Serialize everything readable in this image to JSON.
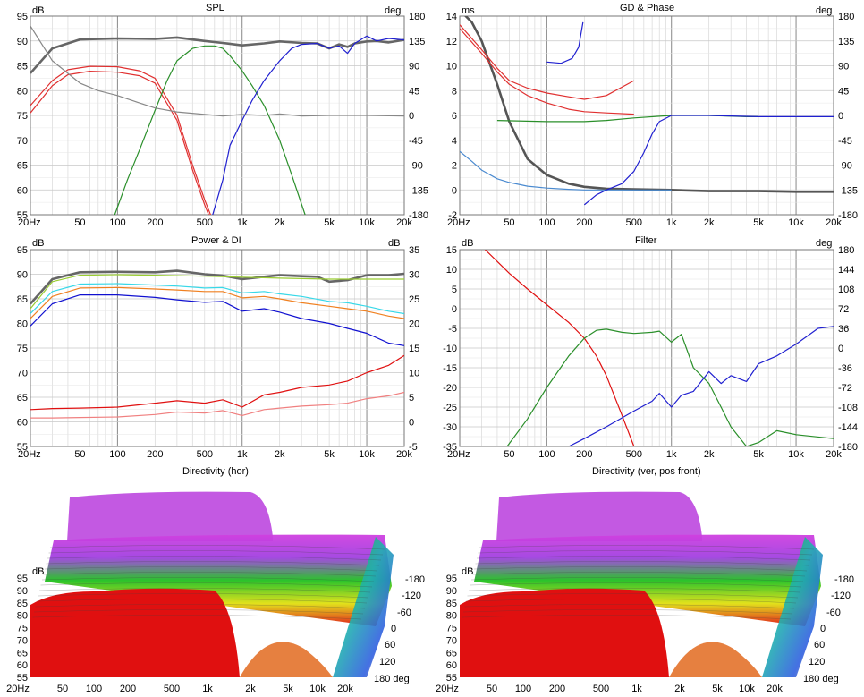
{
  "panels": {
    "spl": {
      "title": "SPL",
      "left_unit": "dB",
      "right_unit": "deg"
    },
    "gd": {
      "title": "GD & Phase",
      "left_unit": "ms",
      "right_unit": "deg"
    },
    "power": {
      "title": "Power & DI",
      "left_unit": "dB",
      "right_unit": "dB"
    },
    "filter": {
      "title": "Filter",
      "left_unit": "dB",
      "right_unit": "deg"
    },
    "dir_hor": {
      "title": "Directivity (hor)",
      "left_unit": "dB"
    },
    "dir_ver": {
      "title": "Directivity (ver, pos front)",
      "left_unit": "dB"
    }
  },
  "chart_data": [
    {
      "id": "spl",
      "type": "line",
      "title": "SPL",
      "x_scale": "log",
      "xlim": [
        20,
        20000
      ],
      "x_ticks": [
        "20Hz",
        "50",
        "100",
        "200",
        "500",
        "1k",
        "2k",
        "5k",
        "10k",
        "20k"
      ],
      "ylim": [
        55,
        95
      ],
      "y_ticks": [
        "95",
        "90",
        "85",
        "80",
        "75",
        "70",
        "65",
        "60",
        "55"
      ],
      "y2lim": [
        -180,
        180
      ],
      "y2_ticks": [
        "180",
        "135",
        "90",
        "45",
        "0",
        "-45",
        "-90",
        "-135",
        "-180"
      ],
      "series": [
        {
          "color": "#666666",
          "axis": "left",
          "x": [
            20,
            30,
            50,
            100,
            200,
            300,
            500,
            700,
            1000,
            1500,
            2000,
            3000,
            4000,
            5000,
            6000,
            7000,
            8000,
            10000,
            12000,
            15000,
            20000
          ],
          "values": [
            83.5,
            88.5,
            90.3,
            90.5,
            90.4,
            90.7,
            90.0,
            89.6,
            89.1,
            89.5,
            89.9,
            89.6,
            89.5,
            88.5,
            89.3,
            88.8,
            89.5,
            89.9,
            90.0,
            89.7,
            90.2
          ]
        },
        {
          "color": "#e03030",
          "axis": "left",
          "x": [
            20,
            30,
            40,
            60,
            100,
            150,
            200,
            300,
            400,
            500,
            600
          ],
          "values": [
            77,
            82,
            84.2,
            84.9,
            84.8,
            84.0,
            82.5,
            75,
            65,
            58,
            53
          ]
        },
        {
          "color": "#e03030",
          "axis": "left",
          "x": [
            20,
            30,
            40,
            60,
            100,
            150,
            200,
            300,
            400,
            500,
            600
          ],
          "values": [
            75.5,
            81,
            83.2,
            83.9,
            83.7,
            83.0,
            81.5,
            74,
            64,
            57,
            52
          ]
        },
        {
          "color": "#2a8f2a",
          "axis": "left",
          "x": [
            95,
            120,
            150,
            200,
            250,
            300,
            400,
            500,
            600,
            700,
            800,
            1000,
            1200,
            1500,
            2000,
            2500,
            3200
          ],
          "values": [
            55,
            62,
            68,
            76,
            82,
            86,
            88.5,
            89.0,
            89.0,
            88.5,
            87,
            84,
            81,
            77,
            70,
            63,
            55
          ]
        },
        {
          "color": "#2020d0",
          "axis": "left",
          "x": [
            580,
            700,
            800,
            1000,
            1200,
            1500,
            2000,
            2500,
            3000,
            4000,
            5000,
            6000,
            7000,
            8000,
            10000,
            12000,
            15000,
            20000
          ],
          "values": [
            55,
            62,
            69,
            74,
            78,
            82,
            86,
            88.5,
            89.3,
            89.5,
            88.5,
            89.0,
            87.5,
            89.5,
            91.0,
            90.0,
            90.5,
            90.2
          ]
        },
        {
          "color": "#888888",
          "axis": "left",
          "x": [
            20,
            30,
            50,
            70,
            100,
            150,
            200,
            300,
            500,
            700,
            1000,
            1500,
            2000,
            3000,
            5000,
            10000,
            20000
          ],
          "values": [
            93,
            86,
            81.5,
            80,
            79,
            77.5,
            76.5,
            75.7,
            75.2,
            74.9,
            75.2,
            75.0,
            75.3,
            74.9,
            75.0,
            75.0,
            74.9
          ]
        }
      ]
    },
    {
      "id": "gd",
      "type": "line",
      "title": "GD & Phase",
      "x_scale": "log",
      "xlim": [
        20,
        20000
      ],
      "x_ticks": [
        "20Hz",
        "50",
        "100",
        "200",
        "500",
        "1k",
        "2k",
        "5k",
        "10k",
        "20k"
      ],
      "ylim": [
        -2,
        14
      ],
      "y_ticks": [
        "14",
        "12",
        "10",
        "8",
        "6",
        "4",
        "2",
        "0",
        "-2"
      ],
      "y2lim": [
        -180,
        180
      ],
      "y2_ticks": [
        "180",
        "135",
        "90",
        "45",
        "0",
        "-45",
        "-90",
        "-135",
        "-180"
      ],
      "series": [
        {
          "color": "#555555",
          "axis": "left",
          "x": [
            20,
            25,
            30,
            40,
            50,
            70,
            100,
            150,
            200,
            300,
            500,
            1000,
            2000,
            5000,
            10000,
            20000
          ],
          "values": [
            14.5,
            13.5,
            12,
            8.5,
            5.5,
            2.5,
            1.2,
            0.5,
            0.25,
            0.1,
            0.05,
            0,
            -0.1,
            -0.1,
            -0.15,
            -0.15
          ]
        },
        {
          "color": "#4a8ad0",
          "axis": "left",
          "x": [
            20,
            25,
            30,
            40,
            50,
            70,
            100,
            150,
            200,
            300,
            500,
            1000
          ],
          "values": [
            3.1,
            2.3,
            1.6,
            0.9,
            0.6,
            0.3,
            0.15,
            0.05,
            0,
            0,
            0,
            0
          ]
        },
        {
          "color": "#e03030",
          "axis": "left",
          "x": [
            20,
            30,
            40,
            50,
            70,
            100,
            150,
            200,
            300,
            500
          ],
          "values": [
            13,
            11,
            9.5,
            8.5,
            7.6,
            7.0,
            6.5,
            6.3,
            6.2,
            6.1
          ]
        },
        {
          "color": "#e03030",
          "axis": "left",
          "x": [
            20,
            30,
            40,
            50,
            70,
            100,
            150,
            200,
            300,
            500
          ],
          "values": [
            13.3,
            11.3,
            9.8,
            8.8,
            8.2,
            7.8,
            7.5,
            7.3,
            7.6,
            8.8
          ]
        },
        {
          "color": "#2a8f2a",
          "axis": "left",
          "x": [
            40,
            100,
            200,
            300,
            500,
            1000,
            2000,
            4000,
            5000
          ],
          "values": [
            5.6,
            5.5,
            5.5,
            5.6,
            5.8,
            6.0,
            6.0,
            5.9,
            5.9
          ]
        },
        {
          "color": "#2020d0",
          "axis": "left",
          "x": [
            200,
            250,
            300,
            400,
            500,
            600,
            700,
            800,
            1000,
            1500,
            2000,
            5000,
            10000,
            20000
          ],
          "values": [
            -1.2,
            -0.4,
            0,
            0.5,
            1.5,
            3,
            4.5,
            5.5,
            6.0,
            6.0,
            6.0,
            5.9,
            5.9,
            5.9
          ]
        },
        {
          "color": "#2020d0",
          "axis": "left",
          "x": [
            100,
            130,
            160,
            180,
            195
          ],
          "values": [
            10.3,
            10.2,
            10.6,
            11.5,
            13.5
          ]
        }
      ]
    },
    {
      "id": "power",
      "type": "line",
      "title": "Power & DI",
      "x_scale": "log",
      "xlim": [
        20,
        20000
      ],
      "x_ticks": [
        "20Hz",
        "50",
        "100",
        "200",
        "500",
        "1k",
        "2k",
        "5k",
        "10k",
        "20k"
      ],
      "ylim": [
        55,
        95
      ],
      "y_ticks": [
        "95",
        "90",
        "85",
        "80",
        "75",
        "70",
        "65",
        "60",
        "55"
      ],
      "y2lim": [
        -5,
        35
      ],
      "y2_ticks": [
        "35",
        "30",
        "25",
        "20",
        "15",
        "10",
        "5",
        "0",
        "-5"
      ],
      "series": [
        {
          "color": "#666666",
          "axis": "left",
          "x": [
            20,
            30,
            50,
            100,
            200,
            300,
            500,
            700,
            1000,
            1500,
            2000,
            3000,
            4000,
            5000,
            7000,
            10000,
            15000,
            20000
          ],
          "values": [
            84,
            89,
            90.4,
            90.5,
            90.4,
            90.7,
            90.0,
            89.7,
            89.0,
            89.5,
            89.8,
            89.6,
            89.5,
            88.5,
            88.8,
            89.8,
            89.8,
            90.1
          ]
        },
        {
          "color": "#9acd32",
          "axis": "left",
          "x": [
            20,
            30,
            50,
            100,
            200,
            500,
            1000,
            2000,
            5000,
            10000,
            20000
          ],
          "values": [
            83,
            88.5,
            89.8,
            89.9,
            89.8,
            89.6,
            89.4,
            89.2,
            89.0,
            89.0,
            89.0
          ]
        },
        {
          "color": "#38d8e8",
          "axis": "left",
          "x": [
            20,
            30,
            50,
            100,
            200,
            300,
            500,
            700,
            1000,
            1500,
            2000,
            3000,
            5000,
            7000,
            10000,
            15000,
            20000
          ],
          "values": [
            82,
            86.5,
            88.0,
            88.1,
            87.8,
            87.6,
            87.2,
            87.3,
            86.2,
            86.5,
            86.0,
            85.5,
            84.5,
            84.2,
            83.5,
            82.5,
            82.0
          ]
        },
        {
          "color": "#f08020",
          "axis": "left",
          "x": [
            20,
            30,
            50,
            100,
            200,
            300,
            500,
            700,
            1000,
            1500,
            2000,
            3000,
            5000,
            7000,
            10000,
            15000,
            20000
          ],
          "values": [
            81,
            85.5,
            87.2,
            87.3,
            87.0,
            86.8,
            86.5,
            86.5,
            85.2,
            85.5,
            85.0,
            84.2,
            83.5,
            83.0,
            82.5,
            81.5,
            81.0
          ]
        },
        {
          "color": "#1010d0",
          "axis": "left",
          "x": [
            20,
            30,
            50,
            100,
            200,
            300,
            500,
            700,
            1000,
            1500,
            2000,
            3000,
            5000,
            7000,
            10000,
            15000,
            20000
          ],
          "values": [
            79.5,
            84,
            85.8,
            85.8,
            85.3,
            84.8,
            84.3,
            84.5,
            82.5,
            83.0,
            82.3,
            81.0,
            80.0,
            79.0,
            78.0,
            76.0,
            75.5
          ]
        },
        {
          "color": "#e01010",
          "axis": "right",
          "x": [
            20,
            30,
            50,
            100,
            200,
            300,
            500,
            700,
            1000,
            1500,
            2000,
            3000,
            5000,
            7000,
            10000,
            15000,
            20000
          ],
          "values": [
            2.5,
            2.7,
            2.8,
            3.0,
            3.8,
            4.3,
            3.8,
            4.5,
            3.0,
            5.5,
            6.0,
            7.0,
            7.5,
            8.3,
            10.0,
            11.5,
            13.5
          ]
        },
        {
          "color": "#f08080",
          "axis": "right",
          "x": [
            20,
            30,
            50,
            100,
            200,
            300,
            500,
            700,
            1000,
            1500,
            2000,
            3000,
            5000,
            7000,
            10000,
            15000,
            20000
          ],
          "values": [
            0.8,
            0.8,
            0.9,
            1.0,
            1.5,
            2.0,
            1.8,
            2.3,
            1.3,
            2.5,
            2.8,
            3.2,
            3.5,
            3.8,
            4.7,
            5.3,
            6.0
          ]
        }
      ]
    },
    {
      "id": "filter",
      "type": "line",
      "title": "Filter",
      "x_scale": "log",
      "xlim": [
        20,
        20000
      ],
      "x_ticks": [
        "20Hz",
        "50",
        "100",
        "200",
        "500",
        "1k",
        "2k",
        "5k",
        "10k",
        "20k"
      ],
      "ylim": [
        -35,
        15
      ],
      "y_ticks": [
        "15",
        "10",
        "5",
        "0",
        "-5",
        "-10",
        "-15",
        "-20",
        "-25",
        "-30",
        "-35"
      ],
      "y2lim": [
        -180,
        180
      ],
      "y2_ticks": [
        "180",
        "144",
        "108",
        "72",
        "36",
        "0",
        "-36",
        "-72",
        "-108",
        "-144",
        "-180"
      ],
      "series": [
        {
          "color": "#e01010",
          "axis": "left",
          "x": [
            32,
            40,
            50,
            70,
            100,
            150,
            200,
            250,
            300,
            400,
            500
          ],
          "values": [
            15,
            12,
            9,
            5,
            1,
            -3.5,
            -7.5,
            -12,
            -17,
            -27,
            -35
          ]
        },
        {
          "color": "#2a8f2a",
          "axis": "left",
          "x": [
            48,
            70,
            100,
            150,
            200,
            250,
            300,
            400,
            500,
            700,
            800,
            1000,
            1200,
            1500,
            2000,
            2500,
            3000,
            4000,
            5000,
            7000,
            10000,
            20000
          ],
          "values": [
            -35,
            -28,
            -20,
            -12,
            -7.5,
            -5.5,
            -5.2,
            -6,
            -6.3,
            -6,
            -5.7,
            -8.5,
            -6.5,
            -15,
            -19,
            -25,
            -30,
            -35,
            -34,
            -31,
            -32,
            -33
          ]
        },
        {
          "color": "#2020d0",
          "axis": "left",
          "x": [
            150,
            200,
            300,
            500,
            700,
            800,
            1000,
            1200,
            1500,
            2000,
            2500,
            3000,
            4000,
            5000,
            7000,
            10000,
            15000,
            20000
          ],
          "values": [
            -35,
            -33,
            -30,
            -26,
            -23.5,
            -21.5,
            -25,
            -22,
            -21,
            -16,
            -19,
            -17,
            -18.5,
            -14,
            -12,
            -9,
            -5,
            -4.5
          ]
        }
      ]
    }
  ],
  "dir_hor": {
    "y_ticks": [
      "95",
      "90",
      "85",
      "80",
      "75",
      "70",
      "65",
      "60",
      "55"
    ],
    "x_ticks": [
      "20Hz",
      "50",
      "100",
      "200",
      "500",
      "1k",
      "2k",
      "5k",
      "10k",
      "20k"
    ],
    "angle_ticks": [
      "-180",
      "-120",
      "-60",
      "0",
      "60",
      "120",
      "180 deg"
    ]
  },
  "dir_ver": {
    "y_ticks": [
      "95",
      "90",
      "85",
      "80",
      "75",
      "70",
      "65",
      "60",
      "55"
    ],
    "x_ticks": [
      "20Hz",
      "50",
      "100",
      "200",
      "500",
      "1k",
      "2k",
      "5k",
      "10k",
      "20k"
    ],
    "angle_ticks": [
      "-180",
      "-120",
      "-60",
      "0",
      "60",
      "120",
      "180 deg"
    ]
  }
}
